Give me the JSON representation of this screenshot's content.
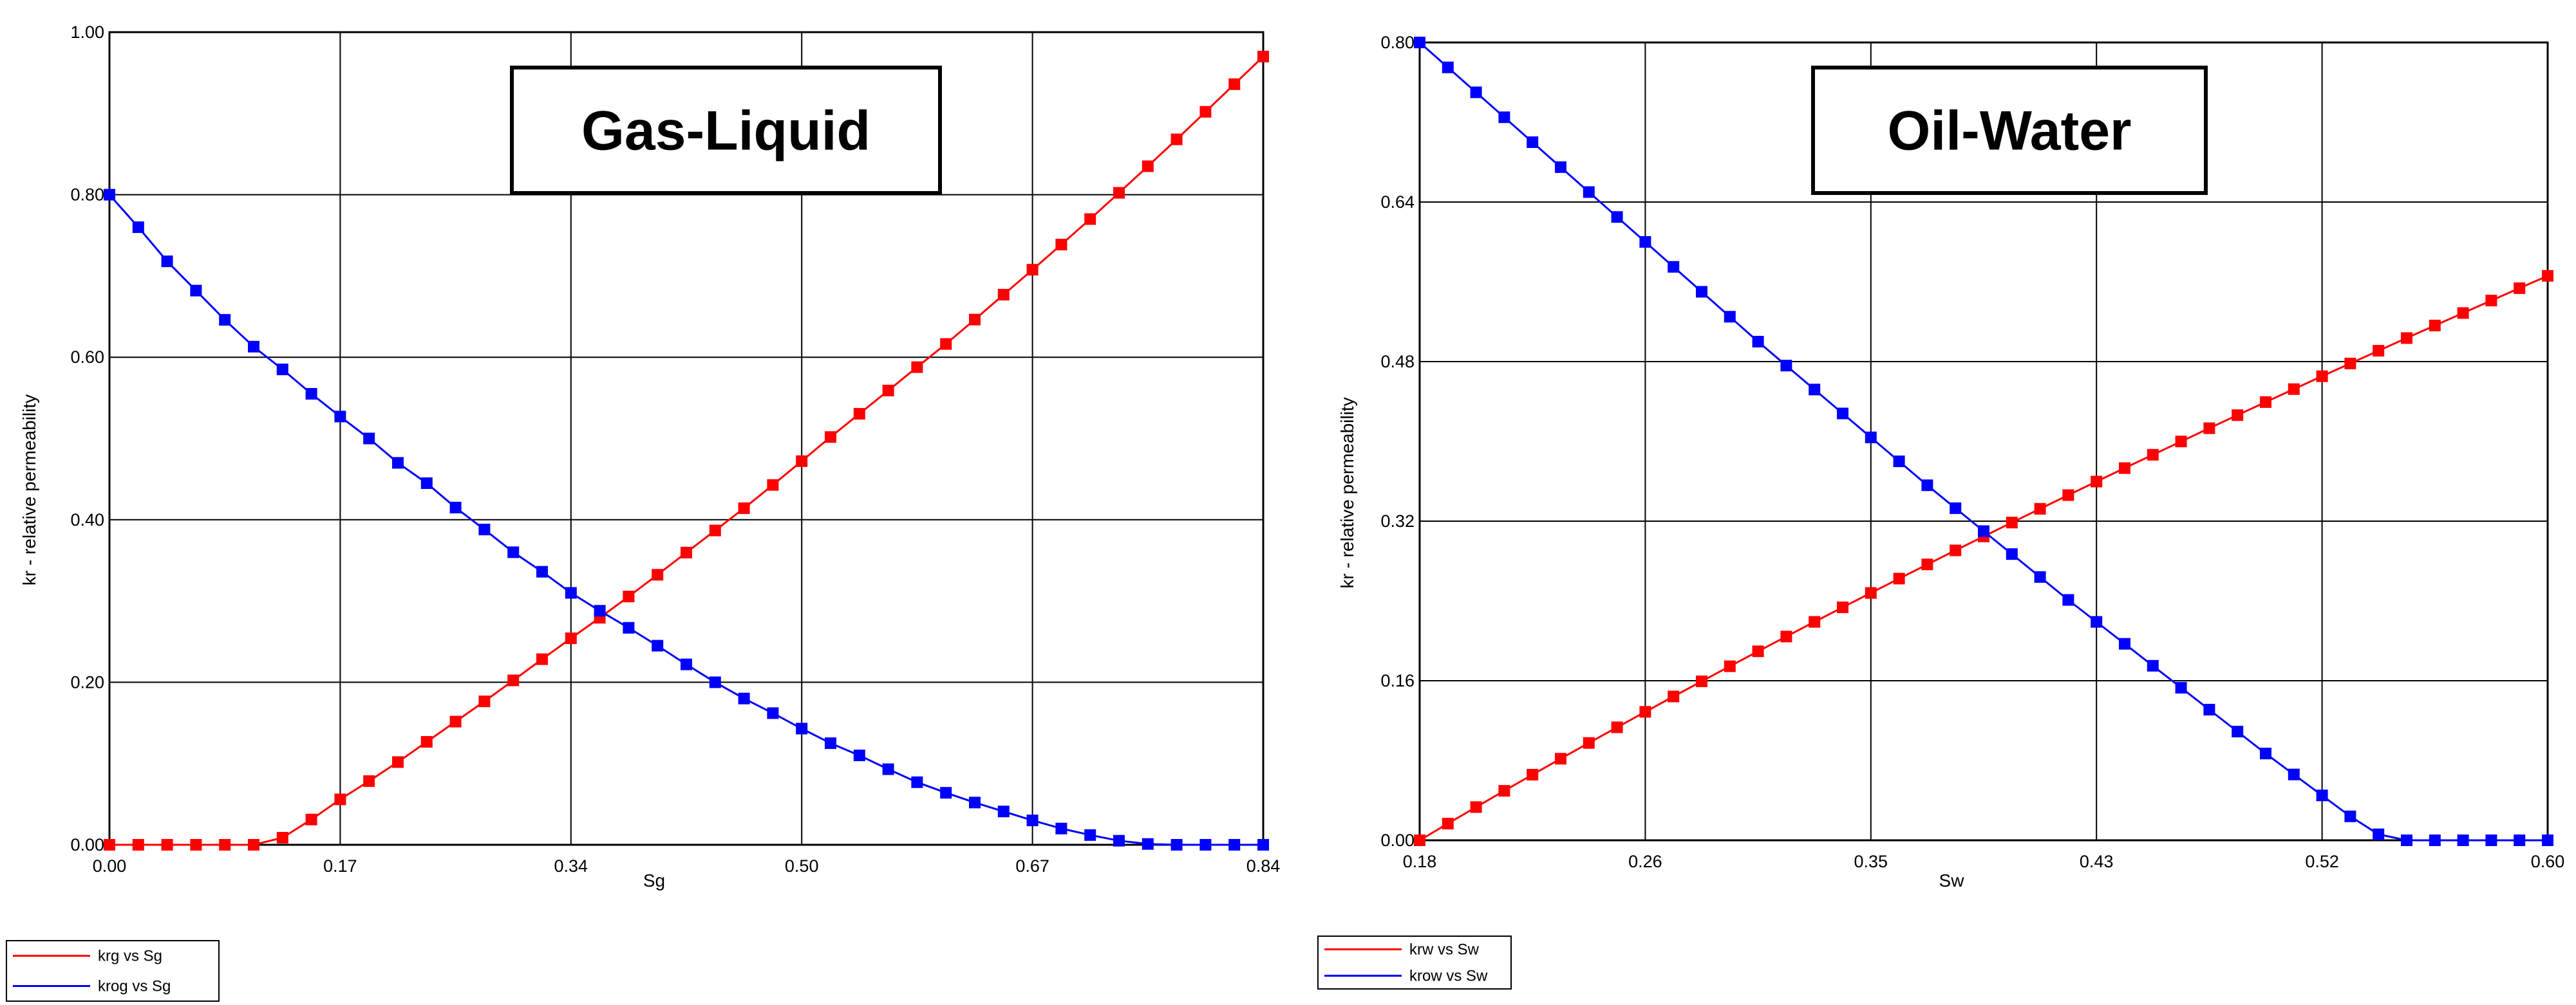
{
  "colors": {
    "series_red": "#ff0000",
    "series_blue": "#0000ff",
    "grid": "#000000",
    "frame": "#000000"
  },
  "chart_data": [
    {
      "type": "line",
      "title": "Gas-Liquid",
      "xlabel": "Sg",
      "ylabel": "kr - relative permeability",
      "xlim": [
        0,
        0.84
      ],
      "ylim": [
        0,
        1.0
      ],
      "x_ticks": [
        "0.00",
        "0.17",
        "0.34",
        "0.50",
        "0.67",
        "0.84"
      ],
      "y_ticks": [
        "0.00",
        "0.20",
        "0.40",
        "0.60",
        "0.80",
        "1.00"
      ],
      "grid": true,
      "legend_position": "bottom-left, below plot",
      "series": [
        {
          "name": "krg vs Sg",
          "color": "#ff0000",
          "marker": "square",
          "x": [
            0.0,
            0.021,
            0.042,
            0.063,
            0.084,
            0.105,
            0.126,
            0.147,
            0.168,
            0.189,
            0.21,
            0.231,
            0.252,
            0.273,
            0.294,
            0.315,
            0.336,
            0.357,
            0.378,
            0.399,
            0.42,
            0.441,
            0.462,
            0.483,
            0.504,
            0.525,
            0.546,
            0.567,
            0.588,
            0.609,
            0.63,
            0.651,
            0.672,
            0.693,
            0.714,
            0.735,
            0.756,
            0.777,
            0.798,
            0.819,
            0.84
          ],
          "y": [
            0.0,
            0.0,
            0.0,
            0.0,
            0.0,
            0.0,
            0.0087,
            0.0311,
            0.0559,
            0.0784,
            0.1018,
            0.1267,
            0.1516,
            0.1765,
            0.2023,
            0.2284,
            0.2541,
            0.2794,
            0.3055,
            0.3323,
            0.3596,
            0.3868,
            0.4142,
            0.4428,
            0.4721,
            0.5018,
            0.5304,
            0.559,
            0.5878,
            0.6163,
            0.6463,
            0.677,
            0.7077,
            0.7386,
            0.77,
            0.8023,
            0.835,
            0.8681,
            0.902,
            0.936,
            0.97
          ]
        },
        {
          "name": "krog vs Sg",
          "color": "#0000ff",
          "marker": "square",
          "x": [
            0.0,
            0.021,
            0.042,
            0.063,
            0.084,
            0.105,
            0.126,
            0.147,
            0.168,
            0.189,
            0.21,
            0.231,
            0.252,
            0.273,
            0.294,
            0.315,
            0.336,
            0.357,
            0.378,
            0.399,
            0.42,
            0.441,
            0.462,
            0.483,
            0.504,
            0.525,
            0.546,
            0.567,
            0.588,
            0.609,
            0.63,
            0.651,
            0.672,
            0.693,
            0.714,
            0.735,
            0.756,
            0.777,
            0.798,
            0.819,
            0.84
          ],
          "y": [
            0.8,
            0.76,
            0.718,
            0.682,
            0.646,
            0.613,
            0.585,
            0.555,
            0.527,
            0.5,
            0.47,
            0.445,
            0.415,
            0.388,
            0.36,
            0.336,
            0.31,
            0.288,
            0.267,
            0.245,
            0.222,
            0.2,
            0.18,
            0.162,
            0.143,
            0.125,
            0.11,
            0.093,
            0.077,
            0.064,
            0.052,
            0.041,
            0.03,
            0.02,
            0.012,
            0.005,
            0.001,
            0.0,
            0.0,
            0.0,
            0.0
          ]
        }
      ]
    },
    {
      "type": "line",
      "title": "Oil-Water",
      "xlabel": "Sw",
      "ylabel": "kr - relative permeability",
      "xlim": [
        0.18,
        0.6
      ],
      "ylim": [
        0,
        0.8
      ],
      "x_ticks": [
        "0.18",
        "0.26",
        "0.35",
        "0.43",
        "0.52",
        "0.60"
      ],
      "y_ticks": [
        "0.00",
        "0.16",
        "0.32",
        "0.48",
        "0.64",
        "0.80"
      ],
      "grid": true,
      "legend_position": "bottom-left, below plot",
      "series": [
        {
          "name": "krw vs Sw",
          "color": "#ff0000",
          "marker": "square",
          "x": [
            0.18,
            0.1905,
            0.201,
            0.2115,
            0.222,
            0.2325,
            0.243,
            0.2535,
            0.264,
            0.2745,
            0.285,
            0.2955,
            0.306,
            0.3165,
            0.327,
            0.3375,
            0.348,
            0.3585,
            0.369,
            0.3795,
            0.39,
            0.4005,
            0.411,
            0.4215,
            0.432,
            0.4425,
            0.453,
            0.4635,
            0.474,
            0.4845,
            0.495,
            0.5055,
            0.516,
            0.5265,
            0.537,
            0.5475,
            0.558,
            0.5685,
            0.579,
            0.5895,
            0.6
          ],
          "y": [
            0.0,
            0.0167,
            0.0333,
            0.0496,
            0.0658,
            0.0818,
            0.0976,
            0.1133,
            0.1288,
            0.1442,
            0.1594,
            0.1745,
            0.1895,
            0.2043,
            0.219,
            0.2336,
            0.248,
            0.2624,
            0.2766,
            0.2907,
            0.3047,
            0.3186,
            0.3324,
            0.3461,
            0.3597,
            0.3732,
            0.3866,
            0.3999,
            0.4132,
            0.4263,
            0.4394,
            0.4524,
            0.4653,
            0.4781,
            0.4909,
            0.5036,
            0.5162,
            0.5287,
            0.5412,
            0.5536,
            0.566
          ]
        },
        {
          "name": "krow vs Sw",
          "color": "#0000ff",
          "marker": "square",
          "x": [
            0.18,
            0.1905,
            0.201,
            0.2115,
            0.222,
            0.2325,
            0.243,
            0.2535,
            0.264,
            0.2745,
            0.285,
            0.2955,
            0.306,
            0.3165,
            0.327,
            0.3375,
            0.348,
            0.3585,
            0.369,
            0.3795,
            0.39,
            0.4005,
            0.411,
            0.4215,
            0.432,
            0.4425,
            0.453,
            0.4635,
            0.474,
            0.4845,
            0.495,
            0.5055,
            0.516,
            0.5265,
            0.537,
            0.5475,
            0.558,
            0.5685,
            0.579,
            0.5895,
            0.6
          ],
          "y": [
            0.8,
            0.775,
            0.75,
            0.725,
            0.7,
            0.675,
            0.65,
            0.625,
            0.6,
            0.575,
            0.55,
            0.525,
            0.5,
            0.476,
            0.452,
            0.428,
            0.404,
            0.38,
            0.356,
            0.333,
            0.31,
            0.287,
            0.264,
            0.241,
            0.219,
            0.197,
            0.175,
            0.153,
            0.131,
            0.109,
            0.087,
            0.066,
            0.045,
            0.024,
            0.006,
            0.0,
            0.0,
            0.0,
            0.0,
            0.0,
            0.0
          ]
        }
      ]
    }
  ]
}
